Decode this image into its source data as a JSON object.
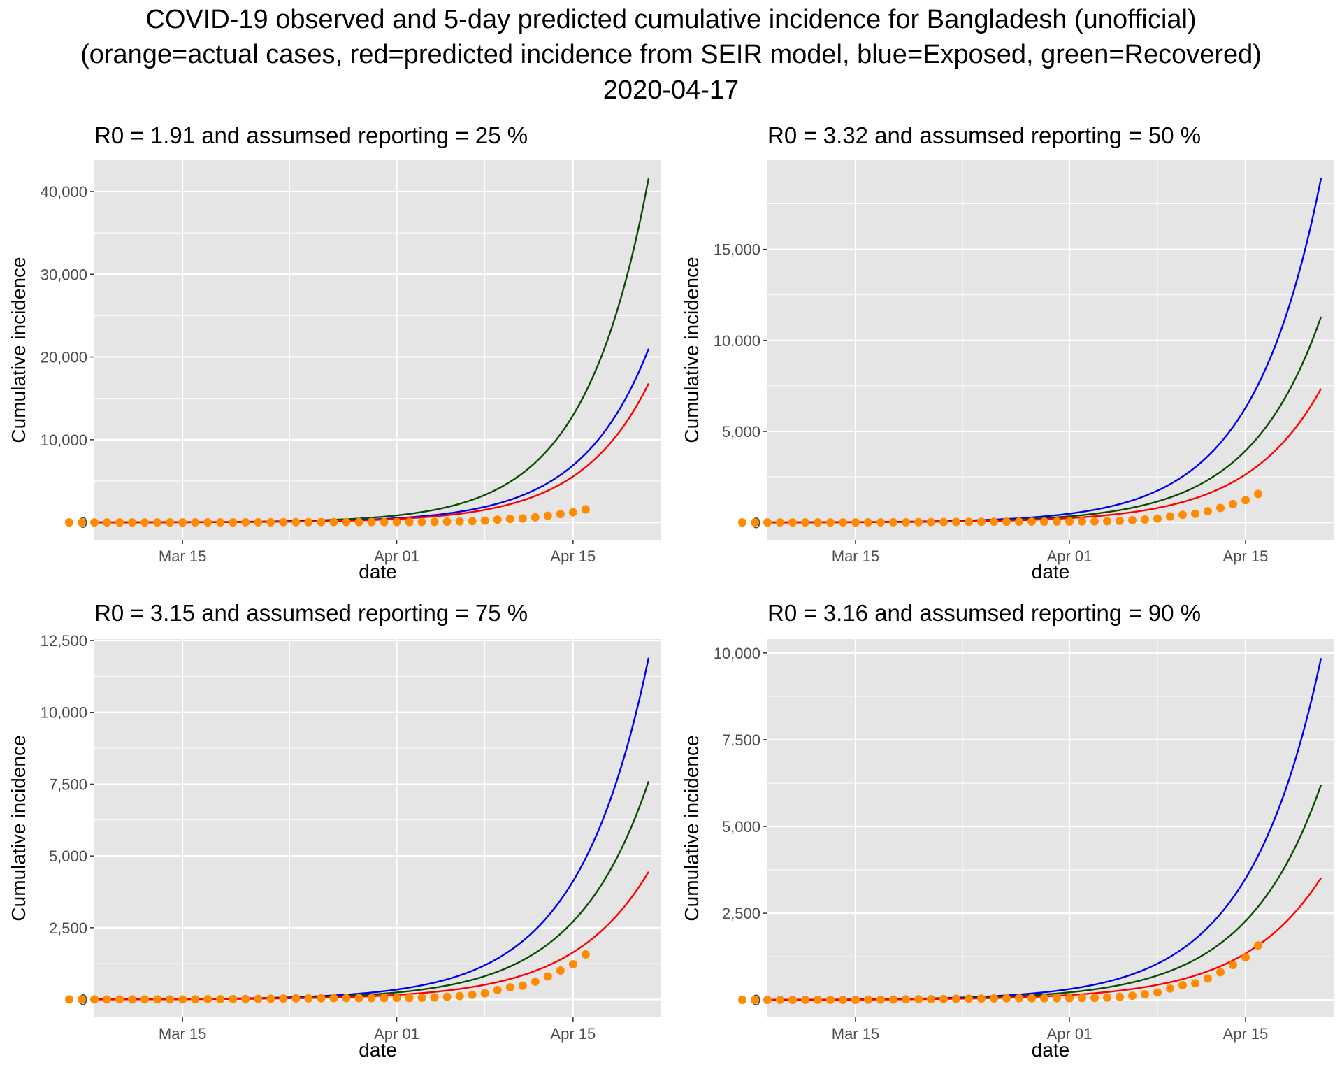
{
  "figure": {
    "title_lines": [
      "COVID-19 observed and 5-day predicted cumulative incidence for Bangladesh (unofficial)",
      "(orange=actual cases, red=predicted incidence from SEIR model, blue=Exposed, green=Recovered)",
      "2020-04-17"
    ]
  },
  "colors": {
    "panel_bg": "#e5e5e5",
    "grid": "#ffffff",
    "actual": "#ff8c00",
    "predicted": "#ff0000",
    "exposed": "#0000ee",
    "recovered": "#0b4d00",
    "tick_text": "#4d4d4d",
    "tick_mark": "#333333"
  },
  "chart_data": [
    {
      "type": "line",
      "title": "R0 = 1.91 and assumsed reporting = 25 %",
      "xlabel": "date",
      "ylabel": "Cumulative incidence",
      "xlim": [
        "2020-03-08",
        "2020-04-22"
      ],
      "ylim": [
        -2100,
        43800
      ],
      "x_ticks": [
        {
          "date": "2020-03-15",
          "label": "Mar 15"
        },
        {
          "date": "2020-04-01",
          "label": "Apr 01"
        },
        {
          "date": "2020-04-15",
          "label": "Apr 15"
        }
      ],
      "y_ticks": [
        {
          "value": 0,
          "label": "0"
        },
        {
          "value": 10000,
          "label": "10,000"
        },
        {
          "value": 20000,
          "label": "20,000"
        },
        {
          "value": 30000,
          "label": "30,000"
        },
        {
          "value": 40000,
          "label": "40,000"
        }
      ],
      "actual_cases": {
        "start_date": "2020-03-06",
        "end_date": "2020-04-16",
        "values": [
          3,
          3,
          3,
          3,
          3,
          3,
          3,
          3,
          3,
          5,
          8,
          10,
          14,
          17,
          20,
          24,
          27,
          33,
          39,
          39,
          44,
          48,
          48,
          48,
          49,
          51,
          54,
          56,
          61,
          70,
          88,
          123,
          164,
          218,
          330,
          424,
          482,
          621,
          803,
          1012,
          1231,
          1572
        ]
      },
      "series": [
        {
          "name": "Recovered",
          "start_date": "2020-03-08",
          "end_date": "2020-04-21",
          "initial": 8,
          "final": 41600
        },
        {
          "name": "Exposed",
          "start_date": "2020-03-08",
          "end_date": "2020-04-21",
          "initial": 6,
          "final": 21000
        },
        {
          "name": "Predicted",
          "start_date": "2020-03-08",
          "end_date": "2020-04-21",
          "initial": 5,
          "final": 16800
        }
      ]
    },
    {
      "type": "line",
      "title": "R0 = 3.32 and assumsed reporting = 50 %",
      "xlabel": "date",
      "ylabel": "Cumulative incidence",
      "xlim": [
        "2020-03-08",
        "2020-04-22"
      ],
      "ylim": [
        -950,
        19900
      ],
      "x_ticks": [
        {
          "date": "2020-03-15",
          "label": "Mar 15"
        },
        {
          "date": "2020-04-01",
          "label": "Apr 01"
        },
        {
          "date": "2020-04-15",
          "label": "Apr 15"
        }
      ],
      "y_ticks": [
        {
          "value": 0,
          "label": "0"
        },
        {
          "value": 5000,
          "label": "5,000"
        },
        {
          "value": 10000,
          "label": "10,000"
        },
        {
          "value": 15000,
          "label": "15,000"
        }
      ],
      "actual_cases": {
        "start_date": "2020-03-06",
        "end_date": "2020-04-16",
        "values": [
          3,
          3,
          3,
          3,
          3,
          3,
          3,
          3,
          3,
          5,
          8,
          10,
          14,
          17,
          20,
          24,
          27,
          33,
          39,
          39,
          44,
          48,
          48,
          48,
          49,
          51,
          54,
          56,
          61,
          70,
          88,
          123,
          164,
          218,
          330,
          424,
          482,
          621,
          803,
          1012,
          1231,
          1572
        ]
      },
      "series": [
        {
          "name": "Exposed",
          "start_date": "2020-03-08",
          "end_date": "2020-04-21",
          "initial": 6,
          "final": 18900
        },
        {
          "name": "Recovered",
          "start_date": "2020-03-08",
          "end_date": "2020-04-21",
          "initial": 5,
          "final": 11300
        },
        {
          "name": "Predicted",
          "start_date": "2020-03-08",
          "end_date": "2020-04-21",
          "initial": 4,
          "final": 7350
        }
      ]
    },
    {
      "type": "line",
      "title": "R0 = 3.15 and assumsed reporting = 75 %",
      "xlabel": "date",
      "ylabel": "Cumulative incidence",
      "xlim": [
        "2020-03-08",
        "2020-04-22"
      ],
      "ylim": [
        -620,
        12550
      ],
      "x_ticks": [
        {
          "date": "2020-03-15",
          "label": "Mar 15"
        },
        {
          "date": "2020-04-01",
          "label": "Apr 01"
        },
        {
          "date": "2020-04-15",
          "label": "Apr 15"
        }
      ],
      "y_ticks": [
        {
          "value": 0,
          "label": "0"
        },
        {
          "value": 2500,
          "label": "2,500"
        },
        {
          "value": 5000,
          "label": "5,000"
        },
        {
          "value": 7500,
          "label": "7,500"
        },
        {
          "value": 10000,
          "label": "10,000"
        },
        {
          "value": 12500,
          "label": "12,500"
        }
      ],
      "actual_cases": {
        "start_date": "2020-03-06",
        "end_date": "2020-04-16",
        "values": [
          3,
          3,
          3,
          3,
          3,
          3,
          3,
          3,
          3,
          5,
          8,
          10,
          14,
          17,
          20,
          24,
          27,
          33,
          39,
          39,
          44,
          48,
          48,
          48,
          49,
          51,
          54,
          56,
          61,
          70,
          88,
          123,
          164,
          218,
          330,
          424,
          482,
          621,
          803,
          1012,
          1231,
          1572
        ]
      },
      "series": [
        {
          "name": "Exposed",
          "start_date": "2020-03-08",
          "end_date": "2020-04-21",
          "initial": 5,
          "final": 11900
        },
        {
          "name": "Recovered",
          "start_date": "2020-03-08",
          "end_date": "2020-04-21",
          "initial": 4,
          "final": 7600
        },
        {
          "name": "Predicted",
          "start_date": "2020-03-08",
          "end_date": "2020-04-21",
          "initial": 3,
          "final": 4450
        }
      ]
    },
    {
      "type": "line",
      "title": "R0 = 3.16 and assumsed reporting = 90 %",
      "xlabel": "date",
      "ylabel": "Cumulative incidence",
      "xlim": [
        "2020-03-08",
        "2020-04-22"
      ],
      "ylim": [
        -500,
        10400
      ],
      "x_ticks": [
        {
          "date": "2020-03-15",
          "label": "Mar 15"
        },
        {
          "date": "2020-04-01",
          "label": "Apr 01"
        },
        {
          "date": "2020-04-15",
          "label": "Apr 15"
        }
      ],
      "y_ticks": [
        {
          "value": 0,
          "label": "0"
        },
        {
          "value": 2500,
          "label": "2,500"
        },
        {
          "value": 5000,
          "label": "5,000"
        },
        {
          "value": 7500,
          "label": "7,500"
        },
        {
          "value": 10000,
          "label": "10,000"
        }
      ],
      "actual_cases": {
        "start_date": "2020-03-06",
        "end_date": "2020-04-16",
        "values": [
          3,
          3,
          3,
          3,
          3,
          3,
          3,
          3,
          3,
          5,
          8,
          10,
          14,
          17,
          20,
          24,
          27,
          33,
          39,
          39,
          44,
          48,
          48,
          48,
          49,
          51,
          54,
          56,
          61,
          70,
          88,
          123,
          164,
          218,
          330,
          424,
          482,
          621,
          803,
          1012,
          1231,
          1572
        ]
      },
      "series": [
        {
          "name": "Exposed",
          "start_date": "2020-03-08",
          "end_date": "2020-04-21",
          "initial": 5,
          "final": 9850
        },
        {
          "name": "Recovered",
          "start_date": "2020-03-08",
          "end_date": "2020-04-21",
          "initial": 4,
          "final": 6200
        },
        {
          "name": "Predicted",
          "start_date": "2020-03-08",
          "end_date": "2020-04-21",
          "initial": 3,
          "final": 3520
        }
      ]
    }
  ]
}
